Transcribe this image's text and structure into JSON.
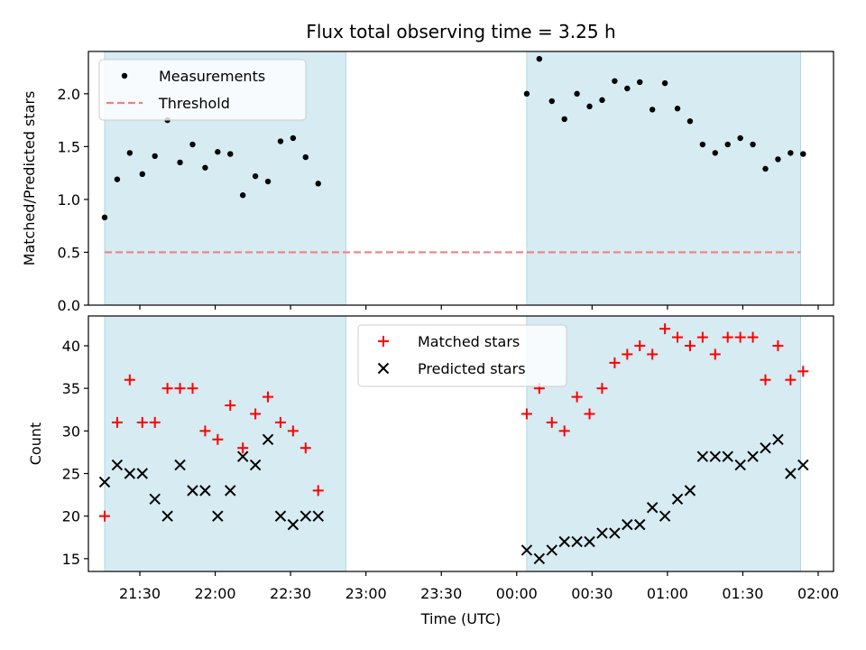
{
  "chart_data": {
    "type": "scatter",
    "title": "Flux total observing time = 3.25 h",
    "xlabel": "Time (UTC)",
    "x_tick_labels": [
      "21:30",
      "22:00",
      "22:30",
      "23:00",
      "23:30",
      "00:00",
      "00:30",
      "01:00",
      "01:30",
      "02:00"
    ],
    "band_color": "#add8e6",
    "observing_windows": [
      [
        "21:16",
        "22:52"
      ],
      [
        "00:04",
        "01:53"
      ]
    ],
    "panels": [
      {
        "ylabel": "Matched/Predicted stars",
        "ylim": [
          0,
          2.4
        ],
        "yticks": [
          0.0,
          0.5,
          1.0,
          1.5,
          2.0
        ],
        "y_tick_labels": [
          "0.0",
          "0.5",
          "1.0",
          "1.5",
          "2.0"
        ],
        "legend_position": "upper-left",
        "series": [
          {
            "name": "Measurements",
            "marker": "dot",
            "color": "#000000",
            "points": [
              [
                "21:16",
                0.83
              ],
              [
                "21:21",
                1.19
              ],
              [
                "21:26",
                1.44
              ],
              [
                "21:31",
                1.24
              ],
              [
                "21:36",
                1.41
              ],
              [
                "21:41",
                1.75
              ],
              [
                "21:46",
                1.35
              ],
              [
                "21:51",
                1.52
              ],
              [
                "21:56",
                1.3
              ],
              [
                "22:01",
                1.45
              ],
              [
                "22:06",
                1.43
              ],
              [
                "22:11",
                1.04
              ],
              [
                "22:16",
                1.22
              ],
              [
                "22:21",
                1.17
              ],
              [
                "22:26",
                1.55
              ],
              [
                "22:31",
                1.58
              ],
              [
                "22:36",
                1.4
              ],
              [
                "22:41",
                1.15
              ],
              [
                "00:04",
                2.0
              ],
              [
                "00:09",
                2.33
              ],
              [
                "00:14",
                1.93
              ],
              [
                "00:19",
                1.76
              ],
              [
                "00:24",
                2.0
              ],
              [
                "00:29",
                1.88
              ],
              [
                "00:34",
                1.94
              ],
              [
                "00:39",
                2.12
              ],
              [
                "00:44",
                2.05
              ],
              [
                "00:49",
                2.11
              ],
              [
                "00:54",
                1.85
              ],
              [
                "00:59",
                2.1
              ],
              [
                "01:04",
                1.86
              ],
              [
                "01:09",
                1.74
              ],
              [
                "01:14",
                1.52
              ],
              [
                "01:19",
                1.44
              ],
              [
                "01:24",
                1.52
              ],
              [
                "01:29",
                1.58
              ],
              [
                "01:34",
                1.52
              ],
              [
                "01:39",
                1.29
              ],
              [
                "01:44",
                1.38
              ],
              [
                "01:49",
                1.44
              ],
              [
                "01:54",
                1.43
              ]
            ]
          },
          {
            "name": "Threshold",
            "marker": "dashed-line",
            "color": "#f08080",
            "points": [
              [
                "21:16",
                0.5
              ],
              [
                "01:53",
                0.5
              ]
            ]
          }
        ]
      },
      {
        "ylabel": "Count",
        "ylim": [
          13.5,
          43.5
        ],
        "yticks": [
          15,
          20,
          25,
          30,
          35,
          40
        ],
        "y_tick_labels": [
          "15",
          "20",
          "25",
          "30",
          "35",
          "40"
        ],
        "legend_position": "upper-center",
        "series": [
          {
            "name": "Matched stars",
            "marker": "plus",
            "color": "#ff0000",
            "points": [
              [
                "21:16",
                20
              ],
              [
                "21:21",
                31
              ],
              [
                "21:26",
                36
              ],
              [
                "21:31",
                31
              ],
              [
                "21:36",
                31
              ],
              [
                "21:41",
                35
              ],
              [
                "21:46",
                35
              ],
              [
                "21:51",
                35
              ],
              [
                "21:56",
                30
              ],
              [
                "22:01",
                29
              ],
              [
                "22:06",
                33
              ],
              [
                "22:11",
                28
              ],
              [
                "22:16",
                32
              ],
              [
                "22:21",
                34
              ],
              [
                "22:26",
                31
              ],
              [
                "22:31",
                30
              ],
              [
                "22:36",
                28
              ],
              [
                "22:41",
                23
              ],
              [
                "00:04",
                32
              ],
              [
                "00:09",
                35
              ],
              [
                "00:14",
                31
              ],
              [
                "00:19",
                30
              ],
              [
                "00:24",
                34
              ],
              [
                "00:29",
                32
              ],
              [
                "00:34",
                35
              ],
              [
                "00:39",
                38
              ],
              [
                "00:44",
                39
              ],
              [
                "00:49",
                40
              ],
              [
                "00:54",
                39
              ],
              [
                "00:59",
                42
              ],
              [
                "01:04",
                41
              ],
              [
                "01:09",
                40
              ],
              [
                "01:14",
                41
              ],
              [
                "01:19",
                39
              ],
              [
                "01:24",
                41
              ],
              [
                "01:29",
                41
              ],
              [
                "01:34",
                41
              ],
              [
                "01:39",
                36
              ],
              [
                "01:44",
                40
              ],
              [
                "01:49",
                36
              ],
              [
                "01:54",
                37
              ]
            ]
          },
          {
            "name": "Predicted stars",
            "marker": "x",
            "color": "#000000",
            "points": [
              [
                "21:16",
                24
              ],
              [
                "21:21",
                26
              ],
              [
                "21:26",
                25
              ],
              [
                "21:31",
                25
              ],
              [
                "21:36",
                22
              ],
              [
                "21:41",
                20
              ],
              [
                "21:46",
                26
              ],
              [
                "21:51",
                23
              ],
              [
                "21:56",
                23
              ],
              [
                "22:01",
                20
              ],
              [
                "22:06",
                23
              ],
              [
                "22:11",
                27
              ],
              [
                "22:16",
                26
              ],
              [
                "22:21",
                29
              ],
              [
                "22:26",
                20
              ],
              [
                "22:31",
                19
              ],
              [
                "22:36",
                20
              ],
              [
                "22:41",
                20
              ],
              [
                "00:04",
                16
              ],
              [
                "00:09",
                15
              ],
              [
                "00:14",
                16
              ],
              [
                "00:19",
                17
              ],
              [
                "00:24",
                17
              ],
              [
                "00:29",
                17
              ],
              [
                "00:34",
                18
              ],
              [
                "00:39",
                18
              ],
              [
                "00:44",
                19
              ],
              [
                "00:49",
                19
              ],
              [
                "00:54",
                21
              ],
              [
                "00:59",
                20
              ],
              [
                "01:04",
                22
              ],
              [
                "01:09",
                23
              ],
              [
                "01:14",
                27
              ],
              [
                "01:19",
                27
              ],
              [
                "01:24",
                27
              ],
              [
                "01:29",
                26
              ],
              [
                "01:34",
                27
              ],
              [
                "01:39",
                28
              ],
              [
                "01:44",
                29
              ],
              [
                "01:49",
                25
              ],
              [
                "01:54",
                26
              ]
            ]
          }
        ]
      }
    ]
  }
}
